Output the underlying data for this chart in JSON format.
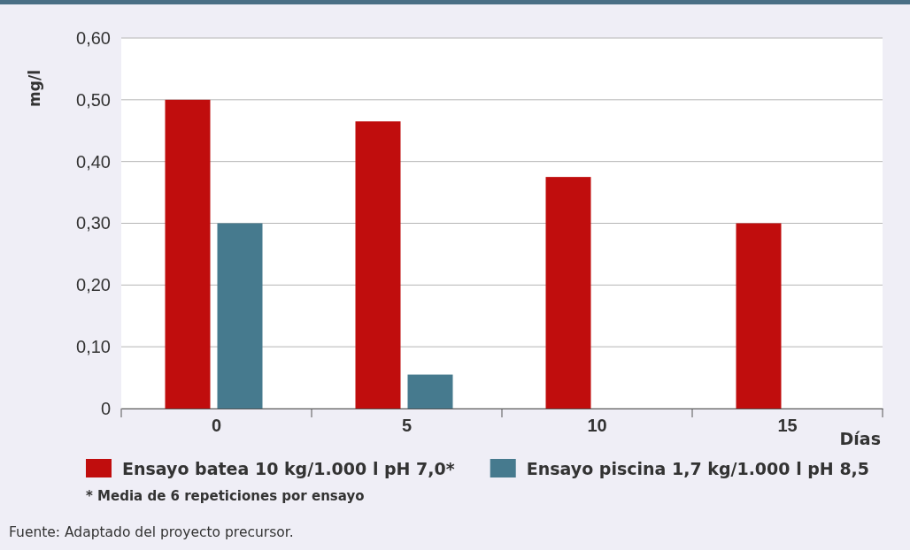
{
  "chart_data": {
    "type": "bar",
    "xlabel": "Días",
    "ylabel": "mg/l",
    "categories": [
      "0",
      "5",
      "10",
      "15"
    ],
    "series": [
      {
        "name": "Ensayo batea 10 kg/1.000 l pH 7,0*",
        "color": "#c00d0d",
        "values": [
          0.5,
          0.465,
          0.375,
          0.3
        ]
      },
      {
        "name": "Ensayo piscina 1,7 kg/1.000 l pH 8,5",
        "color": "#467a8e",
        "values": [
          0.3,
          0.055,
          null,
          null
        ]
      }
    ],
    "ylim": [
      0,
      0.6
    ],
    "yticks": [
      0,
      {
        "value": 0.1,
        "label": "0,10"
      },
      {
        "value": 0.2,
        "label": "0,20"
      },
      {
        "value": 0.3,
        "label": "0,30"
      },
      {
        "value": 0.4,
        "label": "0,40"
      },
      {
        "value": 0.5,
        "label": "0,50"
      },
      {
        "value": 0.6,
        "label": "0,60"
      }
    ],
    "grid": "y",
    "legend": "bottom",
    "annotations": [
      "* Media de 6 repeticiones por ensayo",
      "Fuente: Adaptado del proyecto precursor."
    ]
  }
}
